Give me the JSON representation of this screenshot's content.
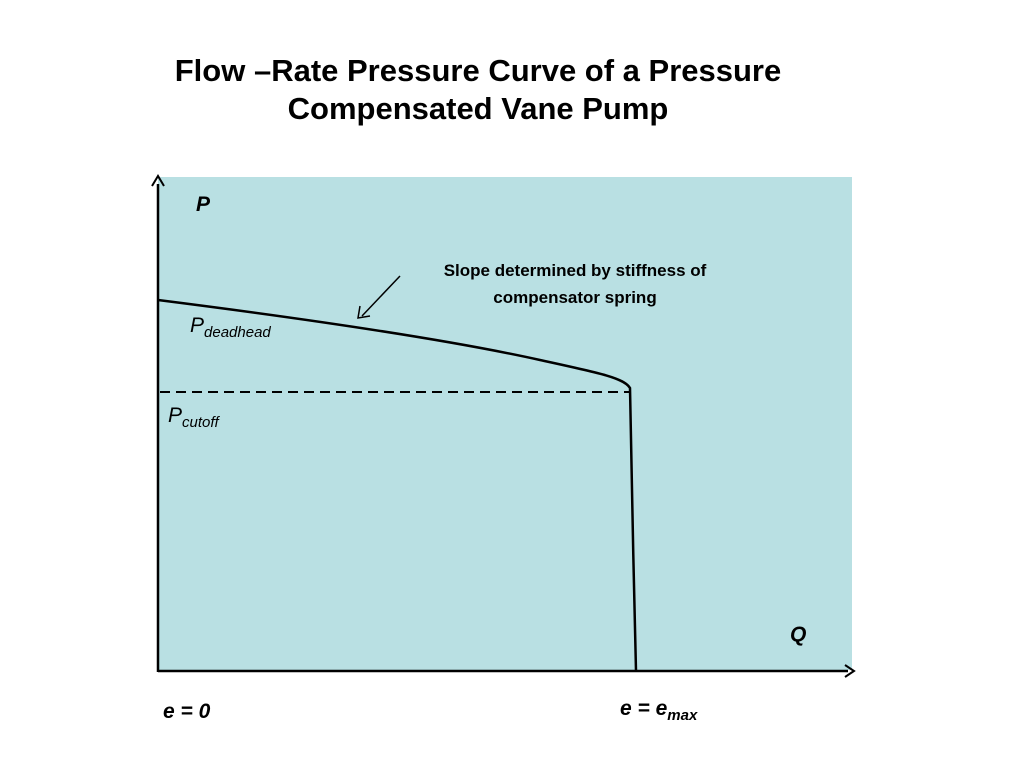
{
  "title": {
    "line1": "Flow –Rate Pressure Curve of a Pressure",
    "line2": "Compensated Vane Pump"
  },
  "axes": {
    "y_label": "P",
    "x_label": "Q"
  },
  "pressure_labels": {
    "deadhead_main": "P",
    "deadhead_sub": "deadhead",
    "cutoff_main": "P",
    "cutoff_sub": "cutoff"
  },
  "annotation": {
    "line1": "Slope determined by stiffness of",
    "line2": "compensator spring"
  },
  "eccentricity": {
    "zero": "e = 0",
    "max_main": "e = e",
    "max_sub": "max"
  },
  "colors": {
    "panel": "#b9e0e3",
    "line": "#000000"
  }
}
